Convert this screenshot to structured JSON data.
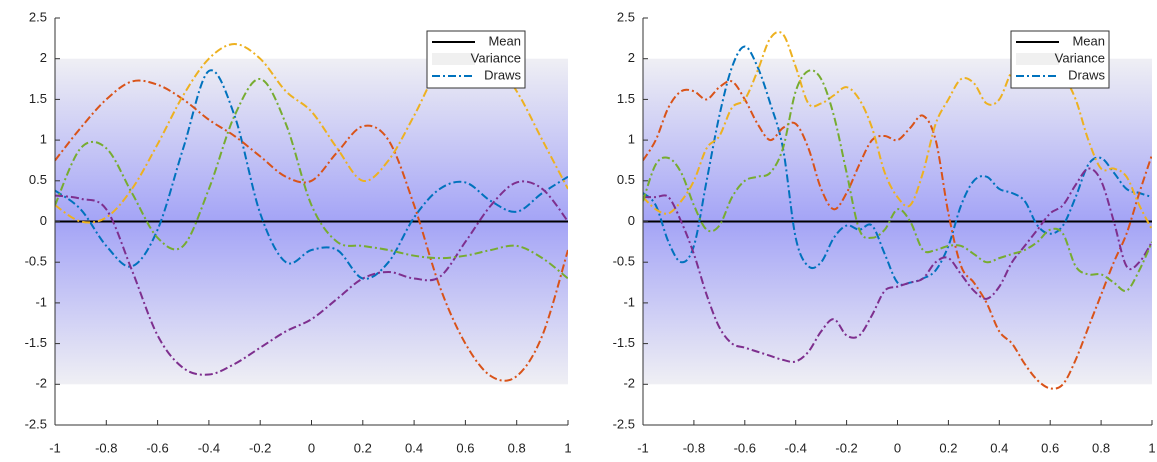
{
  "chart_data": [
    {
      "type": "line",
      "x": [
        -1,
        -0.9,
        -0.8,
        -0.7,
        -0.6,
        -0.5,
        -0.4,
        -0.3,
        -0.2,
        -0.1,
        0,
        0.1,
        0.2,
        0.3,
        0.4,
        0.5,
        0.6,
        0.7,
        0.8,
        0.9,
        1
      ],
      "xlim": [
        -1,
        1
      ],
      "xticks": [
        -1,
        -0.8,
        -0.6,
        -0.4,
        -0.2,
        0,
        0.2,
        0.4,
        0.6,
        0.8,
        1
      ],
      "ylim": [
        -2.5,
        2.5
      ],
      "yticks": [
        -2.5,
        -2,
        -1.5,
        -1,
        -0.5,
        0,
        0.5,
        1,
        1.5,
        2,
        2.5
      ],
      "mean": {
        "name": "Mean",
        "value": 0,
        "color": "#000000"
      },
      "variance": {
        "name": "Variance",
        "band": [
          -2,
          2
        ]
      },
      "legend": "upper right",
      "series": [
        {
          "name": "Draws",
          "color": "#0072BD",
          "values": [
            0.38,
            0.15,
            -0.3,
            -0.55,
            -0.1,
            0.9,
            1.85,
            1.3,
            0.1,
            -0.5,
            -0.35,
            -0.35,
            -0.7,
            -0.5,
            0.05,
            0.4,
            0.48,
            0.25,
            0.12,
            0.35,
            0.55
          ]
        },
        {
          "color": "#D95319",
          "values": [
            0.75,
            1.15,
            1.5,
            1.72,
            1.68,
            1.5,
            1.25,
            1.05,
            0.8,
            0.55,
            0.5,
            0.85,
            1.17,
            1.0,
            0.2,
            -0.8,
            -1.5,
            -1.9,
            -1.9,
            -1.4,
            -0.35
          ]
        },
        {
          "color": "#EDB120",
          "values": [
            0.2,
            0.0,
            0.05,
            0.4,
            0.95,
            1.55,
            2.0,
            2.18,
            2.0,
            1.6,
            1.35,
            0.9,
            0.5,
            0.75,
            1.3,
            1.9,
            2.1,
            2.0,
            1.6,
            1.0,
            0.4
          ]
        },
        {
          "color": "#7E2F8E",
          "values": [
            0.32,
            0.28,
            0.15,
            -0.6,
            -1.4,
            -1.8,
            -1.88,
            -1.75,
            -1.55,
            -1.35,
            -1.2,
            -0.95,
            -0.7,
            -0.62,
            -0.7,
            -0.68,
            -0.25,
            0.2,
            0.48,
            0.4,
            0.0
          ]
        },
        {
          "color": "#77AC30",
          "values": [
            0.2,
            0.9,
            0.9,
            0.35,
            -0.2,
            -0.3,
            0.4,
            1.3,
            1.75,
            1.2,
            0.2,
            -0.25,
            -0.3,
            -0.35,
            -0.42,
            -0.45,
            -0.42,
            -0.35,
            -0.3,
            -0.45,
            -0.7
          ]
        }
      ]
    },
    {
      "type": "line",
      "x": [
        -1,
        -0.95,
        -0.9,
        -0.85,
        -0.8,
        -0.75,
        -0.7,
        -0.65,
        -0.6,
        -0.55,
        -0.5,
        -0.45,
        -0.4,
        -0.35,
        -0.3,
        -0.25,
        -0.2,
        -0.15,
        -0.1,
        -0.05,
        0,
        0.05,
        0.1,
        0.15,
        0.2,
        0.25,
        0.3,
        0.35,
        0.4,
        0.45,
        0.5,
        0.55,
        0.6,
        0.65,
        0.7,
        0.75,
        0.8,
        0.85,
        0.9,
        0.95,
        1
      ],
      "xlim": [
        -1,
        1
      ],
      "xticks": [
        -1,
        -0.8,
        -0.6,
        -0.4,
        -0.2,
        0,
        0.2,
        0.4,
        0.6,
        0.8,
        1
      ],
      "ylim": [
        -2.5,
        2.5
      ],
      "yticks": [
        -2.5,
        -2,
        -1.5,
        -1,
        -0.5,
        0,
        0.5,
        1,
        1.5,
        2,
        2.5
      ],
      "mean": {
        "name": "Mean",
        "value": 0,
        "color": "#000000"
      },
      "variance": {
        "name": "Variance",
        "band": [
          -2,
          2
        ]
      },
      "legend": "upper right",
      "series": [
        {
          "name": "Draws",
          "color": "#0072BD",
          "values": [
            0.35,
            0.2,
            -0.25,
            -0.5,
            -0.3,
            0.5,
            1.3,
            1.9,
            2.15,
            1.9,
            1.45,
            0.9,
            -0.2,
            -0.55,
            -0.5,
            -0.2,
            -0.05,
            -0.1,
            -0.05,
            -0.4,
            -0.75,
            -0.75,
            -0.7,
            -0.6,
            -0.3,
            0.2,
            0.5,
            0.55,
            0.4,
            0.35,
            0.25,
            -0.05,
            -0.15,
            -0.05,
            0.3,
            0.7,
            0.78,
            0.6,
            0.4,
            0.35,
            0.3
          ]
        },
        {
          "color": "#D95319",
          "values": [
            0.75,
            1.0,
            1.4,
            1.6,
            1.6,
            1.5,
            1.65,
            1.72,
            1.5,
            1.2,
            1.0,
            1.15,
            1.2,
            0.9,
            0.4,
            0.15,
            0.35,
            0.7,
            1.0,
            1.05,
            1.0,
            1.15,
            1.3,
            1.0,
            0.1,
            -0.55,
            -0.75,
            -1.0,
            -1.35,
            -1.5,
            -1.75,
            -1.95,
            -2.05,
            -2.0,
            -1.7,
            -1.3,
            -0.9,
            -0.5,
            -0.15,
            0.35,
            0.82
          ]
        },
        {
          "color": "#EDB120",
          "values": [
            0.3,
            0.15,
            0.1,
            0.25,
            0.5,
            0.9,
            1.05,
            1.4,
            1.5,
            1.85,
            2.25,
            2.3,
            1.9,
            1.45,
            1.45,
            1.55,
            1.65,
            1.5,
            1.15,
            0.6,
            0.3,
            0.2,
            0.6,
            1.2,
            1.5,
            1.75,
            1.7,
            1.45,
            1.5,
            1.85,
            2.0,
            2.05,
            1.95,
            1.8,
            1.5,
            1.0,
            0.65,
            0.65,
            0.55,
            0.2,
            -0.1
          ]
        },
        {
          "color": "#7E2F8E",
          "values": [
            0.3,
            0.3,
            0.3,
            0.0,
            -0.4,
            -0.9,
            -1.3,
            -1.5,
            -1.55,
            -1.6,
            -1.65,
            -1.7,
            -1.72,
            -1.6,
            -1.35,
            -1.2,
            -1.4,
            -1.4,
            -1.15,
            -0.85,
            -0.8,
            -0.75,
            -0.7,
            -0.5,
            -0.45,
            -0.65,
            -0.85,
            -0.95,
            -0.8,
            -0.5,
            -0.3,
            -0.1,
            0.1,
            0.2,
            0.45,
            0.65,
            0.5,
            0.0,
            -0.55,
            -0.5,
            -0.25
          ]
        },
        {
          "color": "#77AC30",
          "values": [
            0.25,
            0.7,
            0.78,
            0.6,
            0.2,
            -0.1,
            -0.05,
            0.3,
            0.5,
            0.55,
            0.6,
            0.9,
            1.6,
            1.85,
            1.75,
            1.3,
            0.6,
            -0.1,
            -0.2,
            -0.1,
            0.15,
            0.0,
            -0.35,
            -0.35,
            -0.3,
            -0.3,
            -0.4,
            -0.5,
            -0.45,
            -0.4,
            -0.35,
            -0.25,
            -0.1,
            -0.15,
            -0.55,
            -0.65,
            -0.65,
            -0.75,
            -0.85,
            -0.6,
            -0.25
          ]
        }
      ]
    }
  ]
}
